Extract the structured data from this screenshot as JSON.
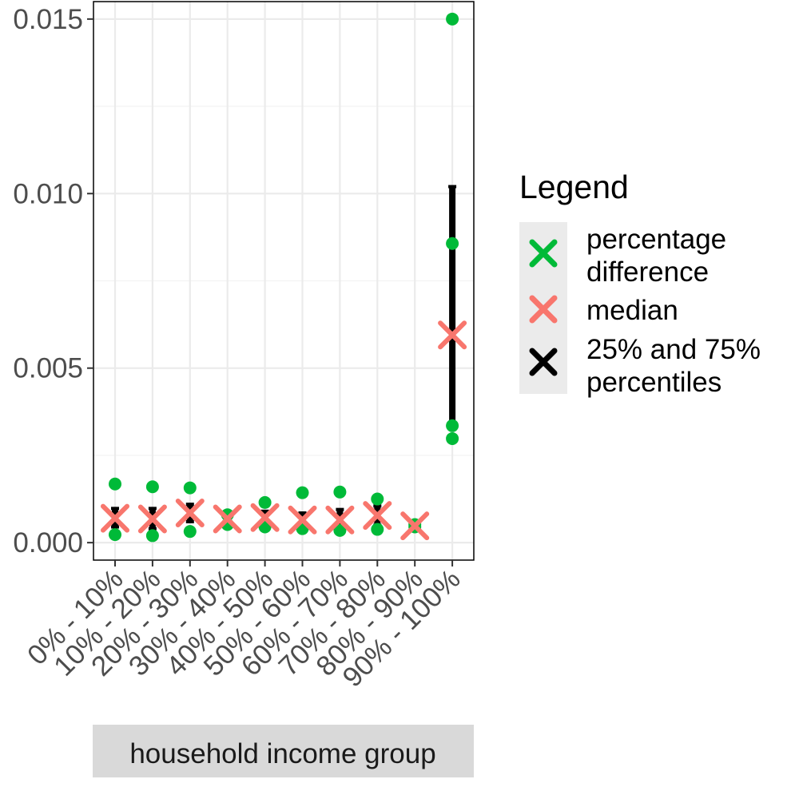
{
  "chart_data": {
    "type": "scatter",
    "title": "",
    "xlabel": "household income group",
    "ylabel": "",
    "categories": [
      "0% - 10%",
      "10% - 20%",
      "20% - 30%",
      "30% - 40%",
      "40% - 50%",
      "50% - 60%",
      "60% - 70%",
      "70% - 80%",
      "80% - 90%",
      "90% - 100%"
    ],
    "ylim": [
      -0.0005,
      0.0155
    ],
    "yticks": [
      0.0,
      0.005,
      0.01,
      0.015
    ],
    "ytick_labels": [
      "0.000",
      "0.005",
      "0.010",
      "0.015"
    ],
    "grid": true,
    "legend": {
      "title": "Legend",
      "position": "right",
      "entries": [
        {
          "label_lines": [
            "percentage",
            "difference"
          ],
          "color": "#00ba38"
        },
        {
          "label_lines": [
            "median"
          ],
          "color": "#f8766d"
        },
        {
          "label_lines": [
            "25% and 75%",
            "percentiles"
          ],
          "color": "#000000"
        }
      ]
    },
    "series": [
      {
        "name": "percentage difference",
        "color": "#00ba38",
        "points": [
          [
            0,
            0.00168
          ],
          [
            0,
            0.00023
          ],
          [
            1,
            0.0016
          ],
          [
            1,
            0.0002
          ],
          [
            2,
            0.00157
          ],
          [
            2,
            0.00032
          ],
          [
            3,
            0.0008
          ],
          [
            3,
            0.00052
          ],
          [
            4,
            0.00115
          ],
          [
            4,
            0.00045
          ],
          [
            5,
            0.00143
          ],
          [
            5,
            0.0004
          ],
          [
            6,
            0.00145
          ],
          [
            6,
            0.00035
          ],
          [
            7,
            0.00125
          ],
          [
            7,
            0.00038
          ],
          [
            8,
            0.00052
          ],
          [
            8,
            0.00045
          ],
          [
            9,
            0.015
          ],
          [
            9,
            0.00857
          ],
          [
            9,
            0.00335
          ],
          [
            9,
            0.00298
          ]
        ]
      },
      {
        "name": "median",
        "color": "#f8766d",
        "values": [
          0.0007,
          0.00068,
          0.00085,
          0.00068,
          0.00072,
          0.00065,
          0.00065,
          0.00078,
          0.00048,
          0.00595
        ]
      },
      {
        "name": "25% and 75% percentiles",
        "color": "#000000",
        "ranges": [
          [
            0.00045,
            0.00098
          ],
          [
            0.0004,
            0.00098
          ],
          [
            0.0006,
            0.0011
          ],
          [
            0.0006,
            0.00075
          ],
          [
            0.00055,
            0.0009
          ],
          [
            0.0005,
            0.00085
          ],
          [
            0.00045,
            0.00095
          ],
          [
            0.0005,
            0.00105
          ],
          [
            0.00045,
            0.0005
          ],
          [
            0.0033,
            0.0102
          ]
        ]
      }
    ]
  }
}
